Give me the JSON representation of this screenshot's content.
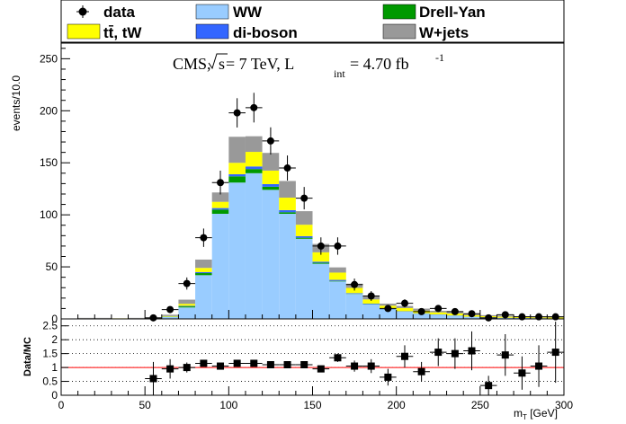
{
  "chart_data": [
    {
      "type": "bar",
      "stacked": true,
      "annotation": {
        "base": "CMS, ",
        "sqrt": "s",
        "mid": " = 7 TeV, L",
        "sub": "int",
        "rest": " = 4.70 fb",
        "sup": "-1"
      },
      "ylabel": "events/10.0",
      "xlim": [
        0,
        300
      ],
      "ylim": [
        0,
        265
      ],
      "yticks": [
        0,
        50,
        100,
        150,
        200,
        250
      ],
      "bin_width": 10,
      "bin_starts": [
        10,
        20,
        30,
        40,
        50,
        60,
        70,
        80,
        90,
        100,
        110,
        120,
        130,
        140,
        150,
        160,
        170,
        180,
        190,
        200,
        210,
        220,
        230,
        240,
        250,
        260,
        270,
        280,
        290
      ],
      "legend_position": "top",
      "series": [
        {
          "name": "WW",
          "color": "#99ccff",
          "values": [
            0,
            0,
            0,
            0,
            0,
            2,
            11,
            42,
            101,
            131,
            140,
            124,
            101,
            77,
            53,
            36,
            24,
            14,
            9,
            7,
            5,
            4,
            3,
            2,
            1.5,
            1,
            0.8,
            0.6,
            0.5
          ]
        },
        {
          "name": "Drell-Yan",
          "color": "#009900",
          "values": [
            0,
            0,
            0,
            0,
            0,
            0.2,
            1,
            2,
            4,
            6,
            4,
            3,
            1.5,
            1,
            1,
            0.5,
            0.3,
            0.2,
            0.2,
            0.1,
            0.1,
            0.1,
            0.1,
            0,
            0,
            0,
            0,
            0,
            0
          ]
        },
        {
          "name": "di-boson",
          "color": "#3366ff",
          "values": [
            0,
            0,
            0,
            0,
            0,
            0,
            0.5,
            1,
            1.5,
            2,
            2.5,
            2.5,
            2,
            1.5,
            1,
            1,
            0.5,
            0.5,
            0.5,
            0.3,
            0.3,
            0.2,
            0.2,
            0.1,
            0.1,
            0.1,
            0.1,
            0.1,
            0
          ]
        },
        {
          "name": "tt̄, tW",
          "color": "#ffff00",
          "values": [
            0.5,
            0.5,
            0.5,
            0.5,
            0.5,
            0.5,
            2,
            4,
            6,
            11,
            14,
            13,
            12,
            11,
            9,
            7,
            5,
            4,
            3,
            3,
            2.5,
            2,
            2,
            1.5,
            1,
            1,
            1,
            0.8,
            0.8
          ]
        },
        {
          "name": "W+jets",
          "color": "#999999",
          "values": [
            0.5,
            0.5,
            0,
            0.5,
            1,
            1.3,
            4,
            8,
            9,
            25,
            15,
            17,
            16,
            13,
            8,
            5,
            4,
            3,
            2,
            2,
            2,
            1.5,
            1.5,
            1,
            1,
            1,
            0.5,
            0.5,
            0.5
          ]
        }
      ],
      "data": {
        "name": "data",
        "x": [
          15,
          25,
          35,
          45,
          55,
          65,
          75,
          85,
          95,
          105,
          115,
          125,
          135,
          145,
          155,
          165,
          175,
          185,
          195,
          205,
          215,
          225,
          235,
          245,
          255,
          265,
          275,
          285,
          295
        ],
        "y": [
          0,
          0,
          0,
          0,
          1,
          9,
          34,
          78,
          131,
          198,
          203,
          171,
          145,
          116,
          70,
          70,
          33,
          22,
          10,
          15,
          7,
          10,
          7,
          5,
          1,
          4,
          2,
          2,
          2
        ]
      }
    },
    {
      "type": "scatter",
      "ylabel": "Data/MC",
      "xlabel_main": "m",
      "xlabel_sub": "T",
      "xlabel_unit": " [GeV]",
      "xlim": [
        0,
        300
      ],
      "ylim": [
        0,
        2.75
      ],
      "yticks": [
        0,
        0.5,
        1,
        1.5,
        2,
        2.5
      ],
      "xticks": [
        0,
        50,
        100,
        150,
        200,
        250,
        300
      ],
      "reference_line": 1,
      "x": [
        55,
        65,
        75,
        85,
        95,
        105,
        115,
        125,
        135,
        145,
        155,
        165,
        175,
        185,
        195,
        205,
        215,
        225,
        235,
        245,
        255,
        265,
        275,
        285,
        295
      ],
      "y": [
        0.6,
        0.95,
        1.0,
        1.15,
        1.05,
        1.15,
        1.15,
        1.1,
        1.1,
        1.1,
        0.95,
        1.35,
        1.05,
        1.05,
        0.65,
        1.4,
        0.85,
        1.55,
        1.5,
        1.6,
        0.35,
        1.45,
        0.8,
        1.05,
        1.55
      ],
      "yerr": [
        0.6,
        0.35,
        0.18,
        0.12,
        0.1,
        0.08,
        0.08,
        0.08,
        0.09,
        0.1,
        0.12,
        0.15,
        0.2,
        0.25,
        0.3,
        0.4,
        0.35,
        0.5,
        0.55,
        0.7,
        0.35,
        0.75,
        0.6,
        0.75,
        1.1
      ]
    }
  ]
}
